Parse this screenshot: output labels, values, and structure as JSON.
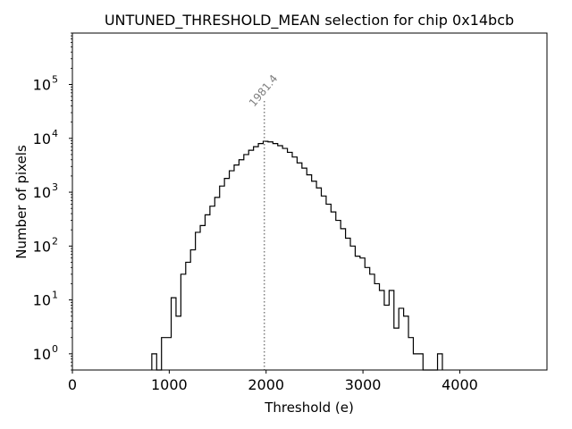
{
  "chart_data": {
    "type": "histogram",
    "title": "UNTUNED_THRESHOLD_MEAN selection for chip 0x14bcb",
    "xlabel": "Threshold (e)",
    "ylabel": "Number of pixels",
    "xlim": [
      0,
      4900
    ],
    "ylim": [
      0.5,
      900000
    ],
    "yscale": "log",
    "grid": false,
    "xticks": [
      0,
      1000,
      2000,
      3000,
      4000
    ],
    "xtick_labels": [
      "0",
      "1000",
      "2000",
      "3000",
      "4000"
    ],
    "yticks": [
      1,
      10,
      100,
      1000,
      10000,
      100000
    ],
    "ytick_labels": [
      "10⁰",
      "10¹",
      "10²",
      "10³",
      "10⁴",
      "10⁵"
    ],
    "bin_width": 50,
    "bins": [
      [
        820,
        1
      ],
      [
        870,
        0
      ],
      [
        920,
        2
      ],
      [
        970,
        2
      ],
      [
        1020,
        11
      ],
      [
        1070,
        5
      ],
      [
        1120,
        30
      ],
      [
        1170,
        50
      ],
      [
        1220,
        85
      ],
      [
        1270,
        180
      ],
      [
        1320,
        240
      ],
      [
        1370,
        380
      ],
      [
        1420,
        550
      ],
      [
        1470,
        800
      ],
      [
        1520,
        1300
      ],
      [
        1570,
        1800
      ],
      [
        1620,
        2500
      ],
      [
        1670,
        3200
      ],
      [
        1720,
        4000
      ],
      [
        1770,
        5000
      ],
      [
        1820,
        6000
      ],
      [
        1870,
        7000
      ],
      [
        1920,
        8000
      ],
      [
        1970,
        8800
      ],
      [
        2020,
        8600
      ],
      [
        2070,
        8000
      ],
      [
        2120,
        7300
      ],
      [
        2170,
        6500
      ],
      [
        2220,
        5500
      ],
      [
        2270,
        4500
      ],
      [
        2320,
        3500
      ],
      [
        2370,
        2800
      ],
      [
        2420,
        2100
      ],
      [
        2470,
        1600
      ],
      [
        2520,
        1200
      ],
      [
        2570,
        850
      ],
      [
        2620,
        600
      ],
      [
        2670,
        430
      ],
      [
        2720,
        300
      ],
      [
        2770,
        210
      ],
      [
        2820,
        140
      ],
      [
        2870,
        100
      ],
      [
        2920,
        65
      ],
      [
        2970,
        60
      ],
      [
        3020,
        40
      ],
      [
        3070,
        30
      ],
      [
        3120,
        20
      ],
      [
        3170,
        15
      ],
      [
        3220,
        8
      ],
      [
        3270,
        15
      ],
      [
        3320,
        3
      ],
      [
        3370,
        7
      ],
      [
        3420,
        5
      ],
      [
        3470,
        2
      ],
      [
        3520,
        1
      ],
      [
        3570,
        1
      ],
      [
        3620,
        0
      ],
      [
        3670,
        0
      ],
      [
        3720,
        0
      ],
      [
        3770,
        1
      ]
    ],
    "reference_line": {
      "x": 1981.4,
      "label": "1981.4",
      "color": "#808080"
    },
    "line_color": "#000000"
  }
}
